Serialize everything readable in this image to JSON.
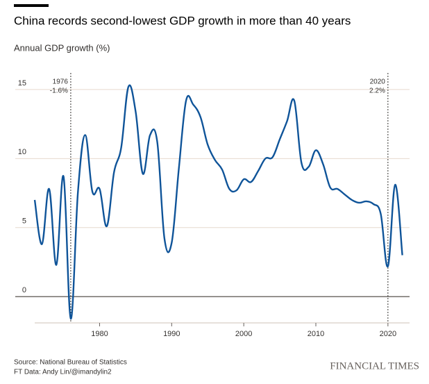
{
  "chart_data": {
    "type": "line",
    "title": "China records second-lowest GDP growth in more than 40 years",
    "subtitle": "Annual GDP growth (%)",
    "source": "Source: National Bureau of Statistics",
    "credit": "FT Data: Andy Lin/@imandylin2",
    "brand": "FINANCIAL TIMES",
    "x": [
      1971,
      1972,
      1973,
      1974,
      1975,
      1976,
      1977,
      1978,
      1979,
      1980,
      1981,
      1982,
      1983,
      1984,
      1985,
      1986,
      1987,
      1988,
      1989,
      1990,
      1991,
      1992,
      1993,
      1994,
      1995,
      1996,
      1997,
      1998,
      1999,
      2000,
      2001,
      2002,
      2003,
      2004,
      2005,
      2006,
      2007,
      2008,
      2009,
      2010,
      2011,
      2012,
      2013,
      2014,
      2015,
      2016,
      2017,
      2018,
      2019,
      2020,
      2021,
      2022
    ],
    "series": [
      {
        "name": "Annual GDP growth",
        "color": "#0f5499",
        "values": [
          7.0,
          3.8,
          7.8,
          2.3,
          8.7,
          -1.6,
          7.6,
          11.7,
          7.6,
          7.8,
          5.1,
          9.0,
          10.8,
          15.2,
          13.4,
          8.9,
          11.7,
          11.2,
          4.2,
          3.9,
          9.3,
          14.2,
          13.9,
          13.0,
          11.0,
          9.9,
          9.2,
          7.8,
          7.7,
          8.5,
          8.3,
          9.1,
          10.0,
          10.1,
          11.4,
          12.7,
          14.2,
          9.7,
          9.4,
          10.6,
          9.6,
          7.9,
          7.8,
          7.4,
          7.0,
          6.8,
          6.9,
          6.7,
          6.0,
          2.2,
          8.1,
          3.0
        ]
      }
    ],
    "xlim": [
      1971,
      2023
    ],
    "ylim": [
      -1.9,
      16.2
    ],
    "xticks": [
      1980,
      1990,
      2000,
      2010,
      2020
    ],
    "yticks": [
      0,
      5,
      10,
      15
    ],
    "grid": true,
    "annotations": [
      {
        "x": 1976,
        "text": [
          "1976",
          "-1.6%"
        ]
      },
      {
        "x": 2020,
        "text": [
          "2020",
          "2.2%"
        ]
      }
    ]
  }
}
